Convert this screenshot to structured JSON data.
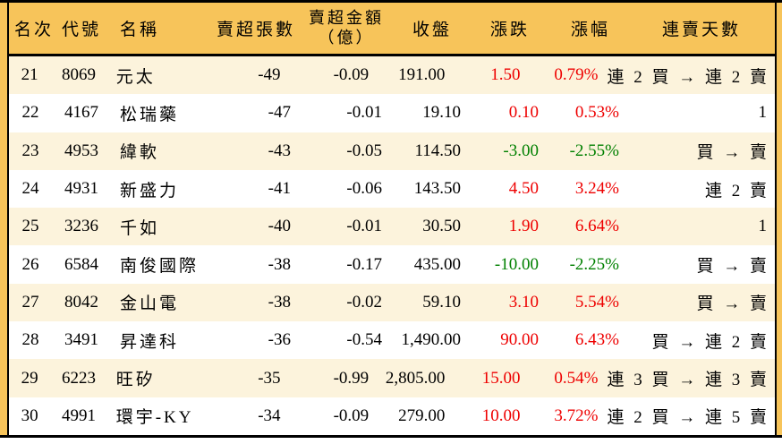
{
  "chart_data": {
    "type": "table",
    "title": "",
    "columns": [
      {
        "key": "rank",
        "label": "名次"
      },
      {
        "key": "code",
        "label": "代號"
      },
      {
        "key": "name",
        "label": "名稱"
      },
      {
        "key": "volume",
        "label": "賣超張數"
      },
      {
        "key": "amount",
        "label": "賣超金額",
        "sublabel": "（億）"
      },
      {
        "key": "close",
        "label": "收盤"
      },
      {
        "key": "change",
        "label": "漲跌"
      },
      {
        "key": "pct",
        "label": "漲幅"
      },
      {
        "key": "streak",
        "label": "連賣天數"
      }
    ],
    "rows": [
      {
        "rank": "21",
        "code": "8069",
        "name": "元太",
        "volume": "-49",
        "amount": "-0.09",
        "close": "191.00",
        "change": "1.50",
        "pct": "0.79%",
        "trend": "up",
        "streak": "連 2 買 → 連 2 賣"
      },
      {
        "rank": "22",
        "code": "4167",
        "name": "松瑞藥",
        "volume": "-47",
        "amount": "-0.01",
        "close": "19.10",
        "change": "0.10",
        "pct": "0.53%",
        "trend": "up",
        "streak": "1"
      },
      {
        "rank": "23",
        "code": "4953",
        "name": "緯軟",
        "volume": "-43",
        "amount": "-0.05",
        "close": "114.50",
        "change": "-3.00",
        "pct": "-2.55%",
        "trend": "down",
        "streak": "買 → 賣"
      },
      {
        "rank": "24",
        "code": "4931",
        "name": "新盛力",
        "volume": "-41",
        "amount": "-0.06",
        "close": "143.50",
        "change": "4.50",
        "pct": "3.24%",
        "trend": "up",
        "streak": "連 2 賣"
      },
      {
        "rank": "25",
        "code": "3236",
        "name": "千如",
        "volume": "-40",
        "amount": "-0.01",
        "close": "30.50",
        "change": "1.90",
        "pct": "6.64%",
        "trend": "up",
        "streak": "1"
      },
      {
        "rank": "26",
        "code": "6584",
        "name": "南俊國際",
        "volume": "-38",
        "amount": "-0.17",
        "close": "435.00",
        "change": "-10.00",
        "pct": "-2.25%",
        "trend": "down",
        "streak": "買 → 賣"
      },
      {
        "rank": "27",
        "code": "8042",
        "name": "金山電",
        "volume": "-38",
        "amount": "-0.02",
        "close": "59.10",
        "change": "3.10",
        "pct": "5.54%",
        "trend": "up",
        "streak": "買 → 賣"
      },
      {
        "rank": "28",
        "code": "3491",
        "name": "昇達科",
        "volume": "-36",
        "amount": "-0.54",
        "close": "1,490.00",
        "change": "90.00",
        "pct": "6.43%",
        "trend": "up",
        "streak": "買 → 連 2 賣"
      },
      {
        "rank": "29",
        "code": "6223",
        "name": "旺矽",
        "volume": "-35",
        "amount": "-0.99",
        "close": "2,805.00",
        "change": "15.00",
        "pct": "0.54%",
        "trend": "up",
        "streak": "連 3 買 → 連 3 賣"
      },
      {
        "rank": "30",
        "code": "4991",
        "name": "環宇-KY",
        "volume": "-34",
        "amount": "-0.09",
        "close": "279.00",
        "change": "10.00",
        "pct": "3.72%",
        "trend": "up",
        "streak": "連 2 買 → 連 5 賣"
      }
    ]
  },
  "colors": {
    "header_bg": "#F7C45A",
    "stripe_bg": "#FCF3DC",
    "row_bg": "#FFFFFF",
    "up": "#EE0000",
    "down": "#008000",
    "border": "#000000"
  }
}
